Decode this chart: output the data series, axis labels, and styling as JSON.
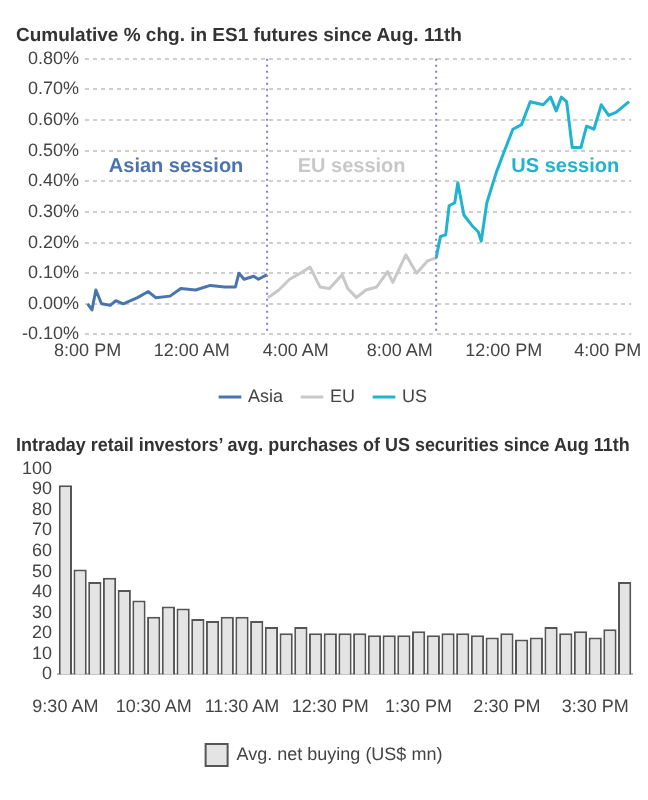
{
  "chart_data": [
    {
      "type": "line",
      "title": "Cumulative % chg. in ES1 futures since Aug. 11th",
      "xlim": [
        "--08-11T19:54",
        "--08-12T16:54"
      ],
      "ylim": [
        -0.1,
        0.8
      ],
      "xticks": [
        {
          "value": "--08-11T20:00",
          "label": "8:00 PM"
        },
        {
          "value": "--08-12T00:00",
          "label": "12:00 AM"
        },
        {
          "value": "--08-12T04:00",
          "label": "4:00 AM"
        },
        {
          "value": "--08-12T08:00",
          "label": "8:00 AM"
        },
        {
          "value": "--08-12T12:00",
          "label": "12:00 PM"
        },
        {
          "value": "--08-12T16:00",
          "label": "4:00 PM"
        }
      ],
      "yticks": [
        {
          "value": -0.1,
          "label": "-0.10%"
        },
        {
          "value": 0,
          "label": "0.00%"
        },
        {
          "value": 0.1,
          "label": "0.10%"
        },
        {
          "value": 0.2,
          "label": "0.20%"
        },
        {
          "value": 0.3,
          "label": "0.30%"
        },
        {
          "value": 0.4,
          "label": "0.40%"
        },
        {
          "value": 0.5,
          "label": "0.50%"
        },
        {
          "value": 0.6,
          "label": "0.60%"
        },
        {
          "value": 0.7,
          "label": "0.70%"
        },
        {
          "value": 0.8,
          "label": "0.80%"
        }
      ],
      "grid": "y",
      "legend": "bottom",
      "marker": "none",
      "series": [
        {
          "name": "Asia",
          "color": "#4a74b0",
          "x": [
            "--08-11T20:00",
            "--08-11T20:10",
            "--08-11T20:19",
            "--08-11T20:32",
            "--08-11T20:52",
            "--08-11T21:05",
            "--08-11T21:22",
            "--08-11T21:55",
            "--08-11T22:20",
            "--08-11T22:37",
            "--08-11T23:10",
            "--08-11T23:35",
            "--08-12T00:09",
            "--08-12T00:43",
            "--08-12T01:16",
            "--08-12T01:41",
            "--08-12T01:49",
            "--08-12T02:01",
            "--08-12T02:23",
            "--08-12T02:34",
            "--08-12T02:54"
          ],
          "values": [
            0,
            -0.02,
            0.045,
            0,
            -0.005,
            0.01,
            0,
            0.02,
            0.04,
            0.02,
            0.025,
            0.05,
            0.045,
            0.06,
            0.055,
            0.055,
            0.1,
            0.08,
            0.09,
            0.08,
            0.095
          ]
        },
        {
          "name": "EU",
          "color": "#c8c8c8",
          "x": [
            "--08-12T02:56",
            "--08-12T03:21",
            "--08-12T03:46",
            "--08-12T04:11",
            "--08-12T04:33",
            "--08-12T04:56",
            "--08-12T05:18",
            "--08-12T05:47",
            "--08-12T06:00",
            "--08-12T06:20",
            "--08-12T06:42",
            "--08-12T07:07",
            "--08-12T07:32",
            "--08-12T07:44",
            "--08-12T08:14",
            "--08-12T08:39",
            "--08-12T09:04",
            "--08-12T09:24"
          ],
          "values": [
            0.02,
            0.045,
            0.08,
            0.1,
            0.12,
            0.055,
            0.05,
            0.095,
            0.05,
            0.02,
            0.045,
            0.055,
            0.105,
            0.07,
            0.16,
            0.1,
            0.14,
            0.15
          ]
        },
        {
          "name": "US",
          "color": "#1fb3d2",
          "x": [
            "--08-12T09:24",
            "--08-12T09:34",
            "--08-12T09:46",
            "--08-12T09:54",
            "--08-12T10:07",
            "--08-12T10:14",
            "--08-12T10:28",
            "--08-12T10:47",
            "--08-12T11:01",
            "--08-12T11:08",
            "--08-12T11:21",
            "--08-12T11:43",
            "--08-12T11:59",
            "--08-12T12:21",
            "--08-12T12:41",
            "--08-12T13:01",
            "--08-12T13:31",
            "--08-12T13:48",
            "--08-12T14:01",
            "--08-12T14:13",
            "--08-12T14:25",
            "--08-12T14:38",
            "--08-12T14:58",
            "--08-12T15:11",
            "--08-12T15:28",
            "--08-12T15:45",
            "--08-12T16:02",
            "--08-12T16:19",
            "--08-12T16:49"
          ],
          "values": [
            0.15,
            0.22,
            0.225,
            0.32,
            0.33,
            0.395,
            0.29,
            0.255,
            0.235,
            0.205,
            0.33,
            0.43,
            0.49,
            0.57,
            0.585,
            0.66,
            0.65,
            0.675,
            0.63,
            0.675,
            0.66,
            0.51,
            0.51,
            0.58,
            0.57,
            0.65,
            0.615,
            0.625,
            0.66
          ]
        }
      ],
      "ref_lines": [
        {
          "axis": "x",
          "value": "--08-12T02:54",
          "color": "#8a7fc0",
          "line_style": "dotted"
        },
        {
          "axis": "x",
          "value": "--08-12T09:24",
          "color": "#8a7fc0",
          "line_style": "dotted"
        }
      ],
      "annotations": [
        "Asian session",
        "EU session",
        "US session"
      ]
    },
    {
      "type": "bar",
      "title": "Intraday retail investors’ avg. purchases of US securities since Aug 11th",
      "categories": [
        "9:30 AM",
        null,
        null,
        null,
        null,
        null,
        "10:30 AM",
        null,
        null,
        null,
        null,
        null,
        "11:30 AM",
        null,
        null,
        null,
        null,
        null,
        "12:30 PM",
        null,
        null,
        null,
        null,
        null,
        "1:30 PM",
        null,
        null,
        null,
        null,
        null,
        "2:30 PM",
        null,
        null,
        null,
        null,
        null,
        "3:30 PM",
        null,
        null
      ],
      "series": [
        {
          "name": "Avg. net buying (US$ mn)",
          "color": "#e4e4e4",
          "values": [
            92,
            51,
            45,
            47,
            41,
            36,
            28,
            33,
            32,
            27,
            26,
            28,
            28,
            26,
            23,
            20,
            23,
            20,
            20,
            20,
            20,
            19,
            19,
            19,
            21,
            19,
            20,
            20,
            19,
            18,
            20,
            17,
            18,
            23,
            20,
            21,
            18,
            22,
            45
          ]
        }
      ],
      "ylim": [
        0,
        100
      ],
      "yticks": [
        0,
        10,
        20,
        30,
        40,
        50,
        60,
        70,
        80,
        90,
        100
      ],
      "grid": false,
      "legend": "bottom"
    }
  ]
}
